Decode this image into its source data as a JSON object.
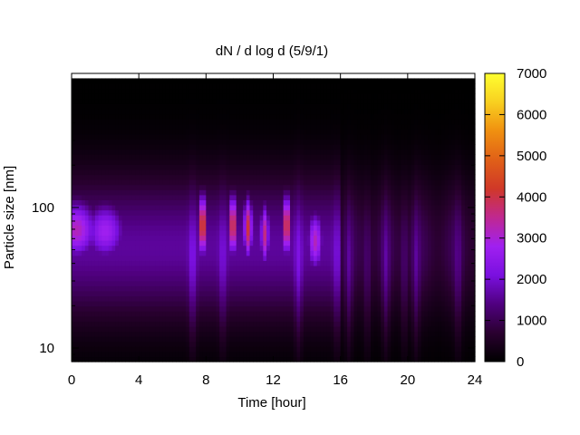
{
  "chart_data": {
    "type": "heatmap",
    "title": "dN / d log d (5/9/1)",
    "xlabel": "Time [hour]",
    "ylabel": "Particle size [nm]",
    "xlim": [
      0,
      24
    ],
    "ylim": [
      8,
      900
    ],
    "yscale": "log",
    "x_ticks": [
      "0",
      "4",
      "8",
      "12",
      "16",
      "20",
      "24"
    ],
    "y_ticks": [
      "10",
      "100"
    ],
    "colorbar": {
      "range": [
        0,
        7000
      ],
      "ticks": [
        "0",
        "1000",
        "2000",
        "3000",
        "4000",
        "5000",
        "6000",
        "7000"
      ],
      "colormap": [
        "#000000",
        "#2a0030",
        "#500080",
        "#7a10e0",
        "#a020f0",
        "#c02890",
        "#d03828",
        "#e06018",
        "#f09010",
        "#f8d020",
        "#ffff30"
      ]
    },
    "grid": false,
    "features": [
      {
        "time": 0.3,
        "diameter_nm": 70,
        "peak": 3200
      },
      {
        "time": 2.0,
        "diameter_nm": 68,
        "peak": 2800
      },
      {
        "time": 7.8,
        "diameter_nm": 75,
        "peak": 4600
      },
      {
        "time": 9.6,
        "diameter_nm": 75,
        "peak": 4300
      },
      {
        "time": 10.5,
        "diameter_nm": 72,
        "peak": 4100
      },
      {
        "time": 11.5,
        "diameter_nm": 65,
        "peak": 3600
      },
      {
        "time": 12.8,
        "diameter_nm": 75,
        "peak": 4300
      },
      {
        "time": 14.5,
        "diameter_nm": 58,
        "peak": 3200
      }
    ]
  }
}
